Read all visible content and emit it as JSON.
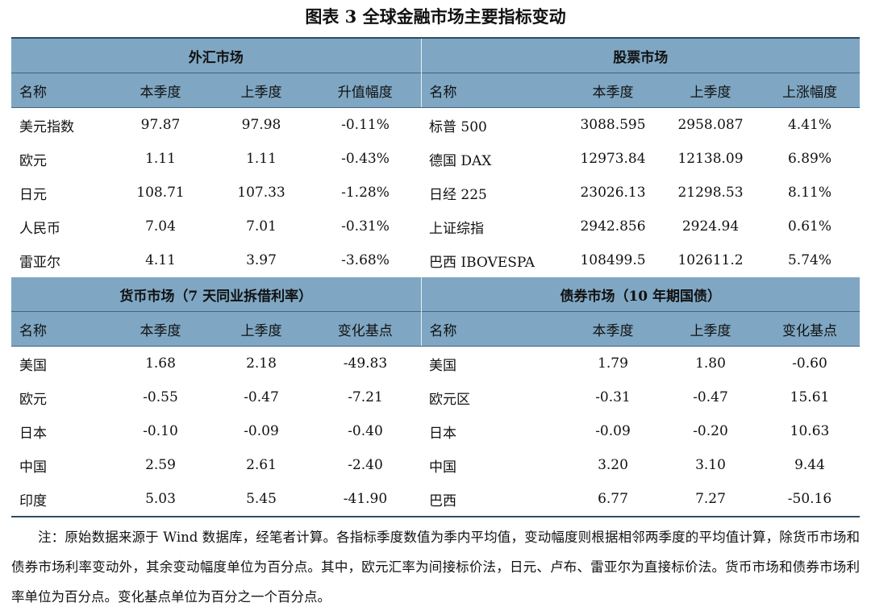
{
  "title": "图表 3    全球金融市场主要指标变动",
  "fx": {
    "section": "外汇市场",
    "headers": [
      "名称",
      "本季度",
      "上季度",
      "升值幅度"
    ],
    "rows": [
      [
        "美元指数",
        "97.87",
        "97.98",
        "-0.11%"
      ],
      [
        "欧元",
        "1.11",
        "1.11",
        "-0.43%"
      ],
      [
        "日元",
        "108.71",
        "107.33",
        "-1.28%"
      ],
      [
        "人民币",
        "7.04",
        "7.01",
        "-0.31%"
      ],
      [
        "雷亚尔",
        "4.11",
        "3.97",
        "-3.68%"
      ]
    ]
  },
  "stock": {
    "section": "股票市场",
    "headers": [
      "名称",
      "本季度",
      "上季度",
      "上涨幅度"
    ],
    "rows": [
      [
        "标普 500",
        "3088.595",
        "2958.087",
        "4.41%"
      ],
      [
        "德国 DAX",
        "12973.84",
        "12138.09",
        "6.89%"
      ],
      [
        "日经 225",
        "23026.13",
        "21298.53",
        "8.11%"
      ],
      [
        "上证综指",
        "2942.856",
        "2924.94",
        "0.61%"
      ],
      [
        "巴西 IBOVESPA",
        "108499.5",
        "102611.2",
        "5.74%"
      ]
    ]
  },
  "money": {
    "section": "货币市场（7 天同业拆借利率）",
    "headers": [
      "名称",
      "本季度",
      "上季度",
      "变化基点"
    ],
    "rows": [
      [
        "美国",
        "1.68",
        "2.18",
        "-49.83"
      ],
      [
        "欧元",
        "-0.55",
        "-0.47",
        "-7.21"
      ],
      [
        "日本",
        "-0.10",
        "-0.09",
        "-0.40"
      ],
      [
        "中国",
        "2.59",
        "2.61",
        "-2.40"
      ],
      [
        "印度",
        "5.03",
        "5.45",
        "-41.90"
      ]
    ]
  },
  "bond": {
    "section": "债券市场（10 年期国债）",
    "headers": [
      "名称",
      "本季度",
      "上季度",
      "变化基点"
    ],
    "rows": [
      [
        "美国",
        "1.79",
        "1.80",
        "-0.60"
      ],
      [
        "欧元区",
        "-0.31",
        "-0.47",
        "15.61"
      ],
      [
        "日本",
        "-0.09",
        "-0.20",
        "10.63"
      ],
      [
        "中国",
        "3.20",
        "3.10",
        "9.44"
      ],
      [
        "巴西",
        "6.77",
        "7.27",
        "-50.16"
      ]
    ]
  },
  "note": "注：原始数据来源于 Wind 数据库，经笔者计算。各指标季度数值为季内平均值，变动幅度则根据相邻两季度的平均值计算，除货币市场和债券市场利率变动外，其余变动幅度单位为百分点。其中，欧元汇率为间接标价法，日元、卢布、雷亚尔为直接标价法。货币市场和债券市场利率单位为百分点。变化基点单位为百分之一个百分点。"
}
